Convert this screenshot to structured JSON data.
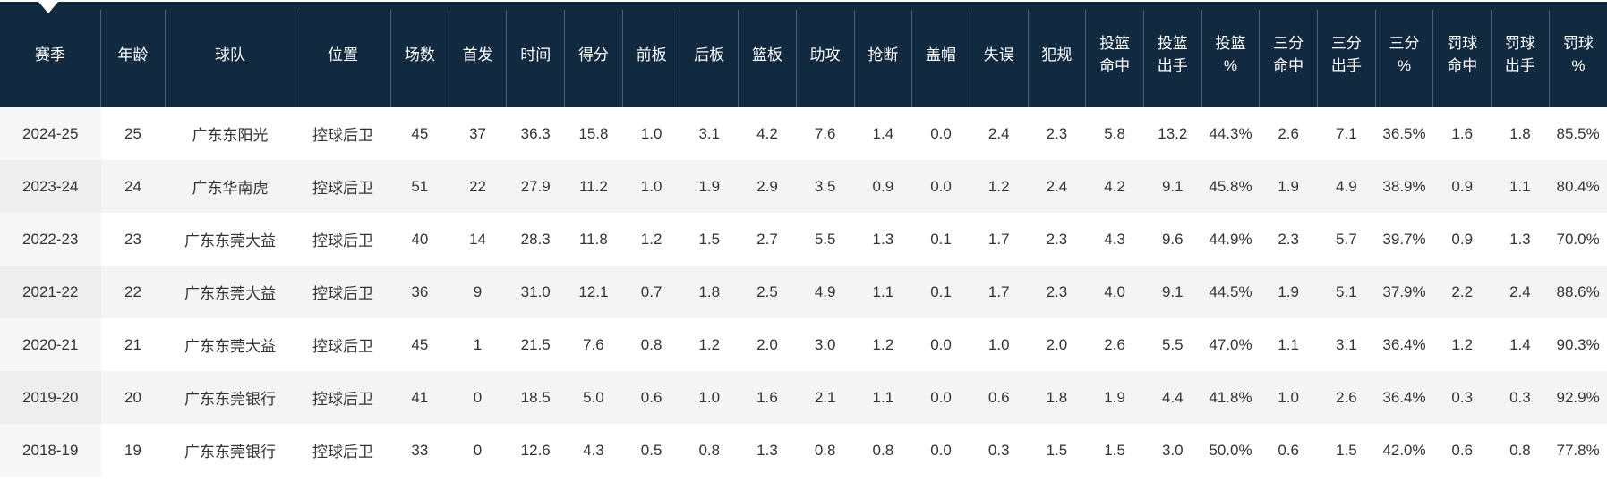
{
  "app": {
    "description_label": "player season statistics table",
    "colors": {
      "header_background": "#112a40",
      "header_divider": "#4e6478",
      "header_text": "#ffffff",
      "body_text": "#333333",
      "stripe_row": "#f4f4f4",
      "sorted_column_on_white": "#f7f7f7",
      "sorted_column_on_stripe": "#eeeeee",
      "sort_caret": "#ffffff"
    }
  },
  "table": {
    "sorted_column_key": "season",
    "columns": [
      {
        "key": "season",
        "label": "赛季"
      },
      {
        "key": "age",
        "label": "年龄"
      },
      {
        "key": "team",
        "label": "球队"
      },
      {
        "key": "position",
        "label": "位置"
      },
      {
        "key": "games",
        "label": "场数"
      },
      {
        "key": "starts",
        "label": "首发"
      },
      {
        "key": "minutes",
        "label": "时间"
      },
      {
        "key": "points",
        "label": "得分"
      },
      {
        "key": "off_rebounds",
        "label": "前板"
      },
      {
        "key": "def_rebounds",
        "label": "后板"
      },
      {
        "key": "rebounds",
        "label": "篮板"
      },
      {
        "key": "assists",
        "label": "助攻"
      },
      {
        "key": "steals",
        "label": "抢断"
      },
      {
        "key": "blocks",
        "label": "盖帽"
      },
      {
        "key": "turnovers",
        "label": "失误"
      },
      {
        "key": "fouls",
        "label": "犯规"
      },
      {
        "key": "fg_made",
        "label": "投篮\n命中"
      },
      {
        "key": "fg_att",
        "label": "投篮\n出手"
      },
      {
        "key": "fg_pct",
        "label": "投篮\n%"
      },
      {
        "key": "three_made",
        "label": "三分\n命中"
      },
      {
        "key": "three_att",
        "label": "三分\n出手"
      },
      {
        "key": "three_pct",
        "label": "三分\n%"
      },
      {
        "key": "ft_made",
        "label": "罚球\n命中"
      },
      {
        "key": "ft_att",
        "label": "罚球\n出手"
      },
      {
        "key": "ft_pct",
        "label": "罚球\n%"
      }
    ],
    "rows": [
      [
        "2024-25",
        "25",
        "广东东阳光",
        "控球后卫",
        "45",
        "37",
        "36.3",
        "15.8",
        "1.0",
        "3.1",
        "4.2",
        "7.6",
        "1.4",
        "0.0",
        "2.4",
        "2.3",
        "5.8",
        "13.2",
        "44.3%",
        "2.6",
        "7.1",
        "36.5%",
        "1.6",
        "1.8",
        "85.5%"
      ],
      [
        "2023-24",
        "24",
        "广东华南虎",
        "控球后卫",
        "51",
        "22",
        "27.9",
        "11.2",
        "1.0",
        "1.9",
        "2.9",
        "3.5",
        "0.9",
        "0.0",
        "1.2",
        "2.4",
        "4.2",
        "9.1",
        "45.8%",
        "1.9",
        "4.9",
        "38.9%",
        "0.9",
        "1.1",
        "80.4%"
      ],
      [
        "2022-23",
        "23",
        "广东东莞大益",
        "控球后卫",
        "40",
        "14",
        "28.3",
        "11.8",
        "1.2",
        "1.5",
        "2.7",
        "5.5",
        "1.3",
        "0.1",
        "1.7",
        "2.3",
        "4.3",
        "9.6",
        "44.9%",
        "2.3",
        "5.7",
        "39.7%",
        "0.9",
        "1.3",
        "70.0%"
      ],
      [
        "2021-22",
        "22",
        "广东东莞大益",
        "控球后卫",
        "36",
        "9",
        "31.0",
        "12.1",
        "0.7",
        "1.8",
        "2.5",
        "4.9",
        "1.1",
        "0.1",
        "1.7",
        "2.3",
        "4.0",
        "9.1",
        "44.5%",
        "1.9",
        "5.1",
        "37.9%",
        "2.2",
        "2.4",
        "88.6%"
      ],
      [
        "2020-21",
        "21",
        "广东东莞大益",
        "控球后卫",
        "45",
        "1",
        "21.5",
        "7.6",
        "0.8",
        "1.2",
        "2.0",
        "3.0",
        "1.2",
        "0.0",
        "1.0",
        "2.0",
        "2.6",
        "5.5",
        "47.0%",
        "1.1",
        "3.1",
        "36.4%",
        "1.2",
        "1.4",
        "90.3%"
      ],
      [
        "2019-20",
        "20",
        "广东东莞银行",
        "控球后卫",
        "41",
        "0",
        "18.5",
        "5.0",
        "0.6",
        "1.0",
        "1.6",
        "2.1",
        "1.1",
        "0.0",
        "0.6",
        "1.8",
        "1.9",
        "4.4",
        "41.8%",
        "1.0",
        "2.6",
        "36.4%",
        "0.3",
        "0.3",
        "92.9%"
      ],
      [
        "2018-19",
        "19",
        "广东东莞银行",
        "控球后卫",
        "33",
        "0",
        "12.6",
        "4.3",
        "0.5",
        "0.8",
        "1.3",
        "0.8",
        "0.8",
        "0.0",
        "0.3",
        "1.5",
        "1.5",
        "3.0",
        "50.0%",
        "0.6",
        "1.5",
        "42.0%",
        "0.6",
        "0.8",
        "77.8%"
      ]
    ]
  }
}
